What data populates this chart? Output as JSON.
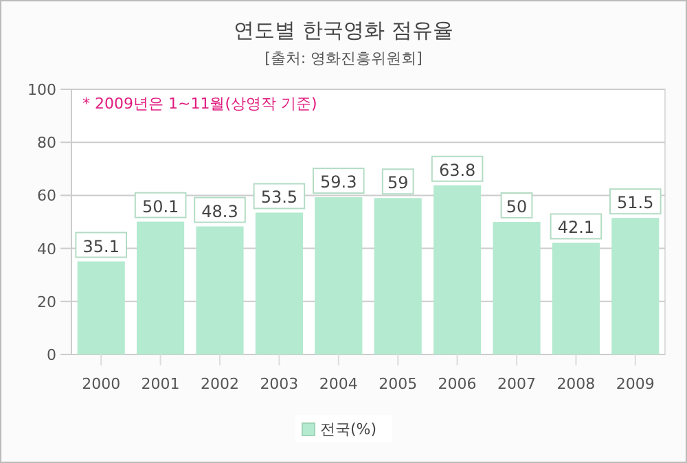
{
  "chart_data": {
    "type": "bar",
    "title": "연도별 한국영화 점유율",
    "subtitle": "[출처: 영화진흥위원회]",
    "annotations": [
      "* 2009년은 1~11월(상영작 기준)"
    ],
    "categories": [
      "2000",
      "2001",
      "2002",
      "2003",
      "2004",
      "2005",
      "2006",
      "2007",
      "2008",
      "2009"
    ],
    "series": [
      {
        "name": "전국(%)",
        "color": "#b3ead0",
        "values": [
          35.1,
          50.1,
          48.3,
          53.5,
          59.3,
          59,
          63.8,
          50,
          42.1,
          51.5
        ]
      }
    ],
    "ylim": [
      0,
      100
    ],
    "yticks": [
      0,
      20,
      40,
      60,
      80,
      100
    ],
    "grid": "y",
    "legend": "bottom",
    "data_labels": true
  }
}
